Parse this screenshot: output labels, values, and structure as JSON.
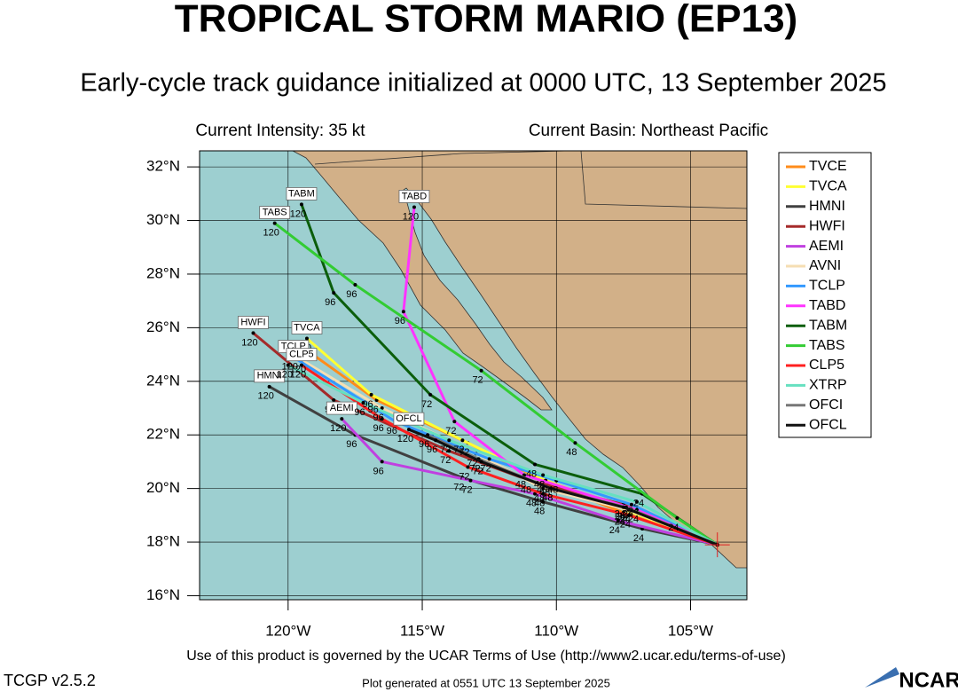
{
  "title": "TROPICAL STORM MARIO (EP13)",
  "subtitle": "Early-cycle track guidance initialized at 0000 UTC, 13 September 2025",
  "intensity": "Current Intensity: 35 kt",
  "basin": "Current Basin: Northeast Pacific",
  "map": {
    "xlim": [
      -123.3,
      -102.9
    ],
    "ylim": [
      15.85,
      32.6
    ],
    "xticks": [
      {
        "value": -120,
        "label": "120°W"
      },
      {
        "value": -115,
        "label": "115°W"
      },
      {
        "value": -110,
        "label": "110°W"
      },
      {
        "value": -105,
        "label": "105°W"
      }
    ],
    "yticks": [
      {
        "value": 16,
        "label": "16°N"
      },
      {
        "value": 18,
        "label": "18°N"
      },
      {
        "value": 20,
        "label": "20°N"
      },
      {
        "value": 22,
        "label": "22°N"
      },
      {
        "value": 24,
        "label": "24°N"
      },
      {
        "value": 26,
        "label": "26°N"
      },
      {
        "value": 28,
        "label": "28°N"
      },
      {
        "value": 30,
        "label": "30°N"
      },
      {
        "value": 32,
        "label": "32°N"
      }
    ],
    "grid": true
  },
  "tracks": [
    {
      "name": "TVCE",
      "color": "#ff8c1a",
      "lon": [
        -104.0,
        -107.5,
        -110.3,
        -113.3,
        -116.7,
        -119.5
      ],
      "lat": [
        17.9,
        19.1,
        20.2,
        21.7,
        23.3,
        25.3
      ],
      "hours": [
        null,
        24,
        48,
        72,
        96,
        120
      ],
      "boxed": false
    },
    {
      "name": "TVCA",
      "color": "#ffff33",
      "lon": [
        -104.0,
        -107.4,
        -110.4,
        -113.5,
        -116.9,
        -119.3
      ],
      "lat": [
        17.9,
        19.2,
        20.3,
        21.8,
        23.5,
        25.6
      ],
      "hours": [
        null,
        24,
        48,
        72,
        96,
        120
      ],
      "boxed": true
    },
    {
      "name": "HMNI",
      "color": "#404040",
      "lon": [
        -104.0,
        -106.8,
        -110.5,
        -113.5,
        -117.5,
        -120.7
      ],
      "lat": [
        17.9,
        18.5,
        19.5,
        20.4,
        22.0,
        23.8
      ],
      "hours": [
        null,
        24,
        48,
        72,
        96,
        120
      ],
      "boxed": true
    },
    {
      "name": "HWFI",
      "color": "#a52a2a",
      "lon": [
        -104.0,
        -107.5,
        -111.0,
        -114.0,
        -118.3,
        -121.3
      ],
      "lat": [
        17.9,
        19.4,
        20.3,
        21.4,
        23.3,
        25.8
      ],
      "hours": [
        null,
        24,
        48,
        72,
        96,
        120
      ],
      "boxed": true
    },
    {
      "name": "AEMI",
      "color": "#c040e0",
      "lon": [
        -104.0,
        -107.7,
        -110.8,
        -113.2,
        -116.5,
        -118.0
      ],
      "lat": [
        17.9,
        18.8,
        19.8,
        20.3,
        21.0,
        22.6
      ],
      "hours": [
        null,
        24,
        48,
        72,
        96,
        120
      ],
      "boxed": true
    },
    {
      "name": "AVNI",
      "color": "#f5deb3",
      "lon": [
        -104.0,
        -107.3,
        -110.5,
        -113.0,
        -116.5,
        -119.5
      ],
      "lat": [
        17.9,
        19.2,
        20.0,
        21.3,
        23.0,
        24.8
      ],
      "hours": [
        null,
        24,
        48,
        72,
        96,
        120
      ],
      "boxed": false
    },
    {
      "name": "TCLP",
      "color": "#3399ff",
      "lon": [
        -104.0,
        -107.2,
        -110.0,
        -112.5,
        -116.0,
        -119.8
      ],
      "lat": [
        17.9,
        19.4,
        20.3,
        21.1,
        22.5,
        24.9
      ],
      "hours": [
        null,
        24,
        48,
        72,
        96,
        120
      ],
      "boxed": true
    },
    {
      "name": "TABD",
      "color": "#ff33ff",
      "lon": [
        -104.0,
        -107.0,
        -111.2,
        -113.8,
        -115.7,
        -115.3
      ],
      "lat": [
        17.9,
        19.2,
        20.5,
        22.5,
        26.6,
        30.5
      ],
      "hours": [
        null,
        24,
        48,
        72,
        96,
        120
      ],
      "boxed": true
    },
    {
      "name": "TABM",
      "color": "#0b5e0b",
      "lon": [
        -104.0,
        -106.8,
        -110.8,
        -114.7,
        -118.3,
        -119.5
      ],
      "lat": [
        17.9,
        19.8,
        20.9,
        23.5,
        27.3,
        30.6
      ],
      "hours": [
        null,
        24,
        48,
        72,
        96,
        120
      ],
      "boxed": true
    },
    {
      "name": "TABS",
      "color": "#33cc33",
      "lon": [
        -104.0,
        -105.5,
        -109.3,
        -112.8,
        -117.5,
        -120.5
      ],
      "lat": [
        17.9,
        18.9,
        21.7,
        24.4,
        27.6,
        29.9
      ],
      "hours": [
        null,
        24,
        48,
        72,
        96,
        120
      ],
      "boxed": true
    },
    {
      "name": "CLP5",
      "color": "#ff2020",
      "lon": [
        -104.0,
        -107.3,
        -110.5,
        -113.3,
        -116.5,
        -119.5
      ],
      "lat": [
        17.9,
        19.0,
        19.8,
        20.8,
        22.6,
        24.6
      ],
      "hours": [
        null,
        24,
        48,
        72,
        96,
        120
      ],
      "boxed": true
    },
    {
      "name": "XTRP",
      "color": "#66e0c0",
      "lon": [
        -104.0,
        -107.0,
        -110.5,
        -114.0,
        -117.2,
        -120.0
      ],
      "lat": [
        17.9,
        19.5,
        20.5,
        21.8,
        23.2,
        24.6
      ],
      "hours": [
        null,
        24,
        48,
        72,
        96,
        120
      ],
      "boxed": false
    },
    {
      "name": "OFCI",
      "color": "#777777",
      "lon": [
        -104.0,
        -107.4,
        -110.2,
        -112.9,
        -114.8
      ],
      "lat": [
        17.9,
        19.3,
        20.0,
        21.1,
        22.0
      ],
      "hours": [
        null,
        24,
        48,
        72,
        96
      ],
      "boxed": false
    },
    {
      "name": "OFCL",
      "color": "#111111",
      "lon": [
        -104.0,
        -107.5,
        -110.2,
        -112.8,
        -114.5,
        -115.5
      ],
      "lat": [
        17.9,
        19.3,
        20.0,
        21.0,
        21.8,
        22.2
      ],
      "hours": [
        null,
        24,
        48,
        72,
        96,
        120
      ],
      "boxed": true
    }
  ],
  "footer": {
    "terms": "Use of this product is governed by the UCAR Terms of Use (http://www2.ucar.edu/terms-of-use)",
    "version": "TCGP v2.5.2",
    "generated": "Plot generated at 0551 UTC   13 September 2025",
    "logo": "NCAR"
  }
}
